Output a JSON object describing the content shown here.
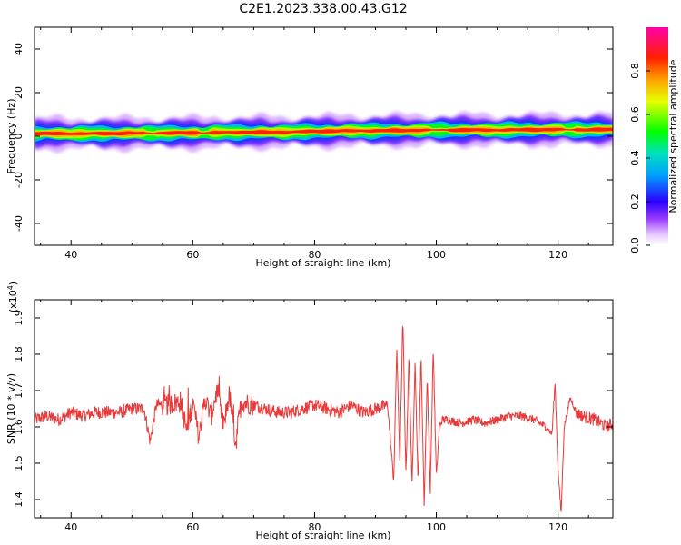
{
  "title": "C2E1.2023.338.00.43.G12",
  "colors": {
    "snr_line": "#e83a3a",
    "axis": "#000000",
    "background": "#ffffff"
  },
  "chart_data": [
    {
      "type": "heatmap",
      "panel": "top",
      "xlabel": "Height of straight line (km)",
      "ylabel": "Frequency (Hz)",
      "xlim": [
        34,
        129
      ],
      "ylim": [
        -50,
        50
      ],
      "xticks": [
        40,
        60,
        80,
        100,
        120
      ],
      "yticks": [
        40,
        20,
        0,
        -20,
        -40
      ],
      "band_center_hz": [
        {
          "x": 34,
          "y": 1.2
        },
        {
          "x": 50,
          "y": 1.3
        },
        {
          "x": 56,
          "y": 1.5
        },
        {
          "x": 60,
          "y": 1.6
        },
        {
          "x": 70,
          "y": 1.8
        },
        {
          "x": 80,
          "y": 2.2
        },
        {
          "x": 90,
          "y": 2.6
        },
        {
          "x": 100,
          "y": 2.8
        },
        {
          "x": 110,
          "y": 2.9
        },
        {
          "x": 120,
          "y": 3.0
        },
        {
          "x": 129,
          "y": 3.1
        }
      ],
      "colorbar": {
        "label": "Normalized spectral amplitude",
        "range": [
          0,
          1
        ],
        "ticks": [
          0.0,
          0.2,
          0.4,
          0.6,
          0.8
        ],
        "tick_labels": [
          "0.0",
          "0.2",
          "0.4",
          "0.6",
          "0.8"
        ],
        "stops": [
          {
            "v": 0.0,
            "c": "#ffffff"
          },
          {
            "v": 0.05,
            "c": "#e6c8ff"
          },
          {
            "v": 0.12,
            "c": "#9a3cff"
          },
          {
            "v": 0.2,
            "c": "#2a00ff"
          },
          {
            "v": 0.32,
            "c": "#00a0ff"
          },
          {
            "v": 0.42,
            "c": "#00e0c0"
          },
          {
            "v": 0.52,
            "c": "#00ff00"
          },
          {
            "v": 0.66,
            "c": "#e6ff00"
          },
          {
            "v": 0.76,
            "c": "#ffa000"
          },
          {
            "v": 0.86,
            "c": "#ff2000"
          },
          {
            "v": 1.0,
            "c": "#ff00aa"
          }
        ]
      }
    },
    {
      "type": "line",
      "panel": "bottom",
      "xlabel": "Height of straight line (km)",
      "ylabel": "SNR (10 * v/v)",
      "y_multiplier": "(x10",
      "y_multiplier_exp": "4",
      "y_multiplier_close": ")",
      "xlim": [
        34,
        129
      ],
      "ylim": [
        1.35,
        1.95
      ],
      "xticks": [
        40,
        60,
        80,
        100,
        120
      ],
      "yticks": [
        1.9,
        1.8,
        1.7,
        1.6,
        1.5,
        1.4
      ],
      "series": [
        {
          "color": "#e83a3a",
          "x": [
            34,
            36,
            38,
            40,
            42,
            44,
            46,
            48,
            50,
            52,
            53,
            54,
            56,
            58,
            59,
            60,
            61,
            62,
            63,
            64,
            65,
            66,
            67,
            68,
            70,
            72,
            74,
            76,
            78,
            80,
            82,
            84,
            86,
            88,
            90,
            92,
            93,
            93.5,
            94,
            94.5,
            95,
            95.5,
            96,
            96.5,
            97,
            97.5,
            98,
            98.5,
            99,
            99.5,
            100,
            100.5,
            101,
            102,
            104,
            106,
            108,
            110,
            112,
            114,
            116,
            118,
            119,
            119.5,
            120,
            120.5,
            121,
            122,
            122.5,
            123,
            124,
            126,
            128,
            129
          ],
          "y": [
            1.62,
            1.63,
            1.62,
            1.64,
            1.63,
            1.64,
            1.64,
            1.64,
            1.65,
            1.65,
            1.56,
            1.66,
            1.66,
            1.67,
            1.59,
            1.67,
            1.57,
            1.68,
            1.63,
            1.7,
            1.6,
            1.69,
            1.56,
            1.67,
            1.66,
            1.65,
            1.64,
            1.64,
            1.65,
            1.66,
            1.65,
            1.64,
            1.66,
            1.64,
            1.65,
            1.66,
            1.45,
            1.82,
            1.5,
            1.9,
            1.47,
            1.8,
            1.43,
            1.78,
            1.44,
            1.8,
            1.38,
            1.74,
            1.42,
            1.82,
            1.46,
            1.6,
            1.62,
            1.62,
            1.61,
            1.62,
            1.61,
            1.62,
            1.63,
            1.63,
            1.62,
            1.6,
            1.58,
            1.72,
            1.48,
            1.36,
            1.6,
            1.68,
            1.66,
            1.64,
            1.63,
            1.62,
            1.6,
            1.61
          ]
        }
      ]
    }
  ]
}
